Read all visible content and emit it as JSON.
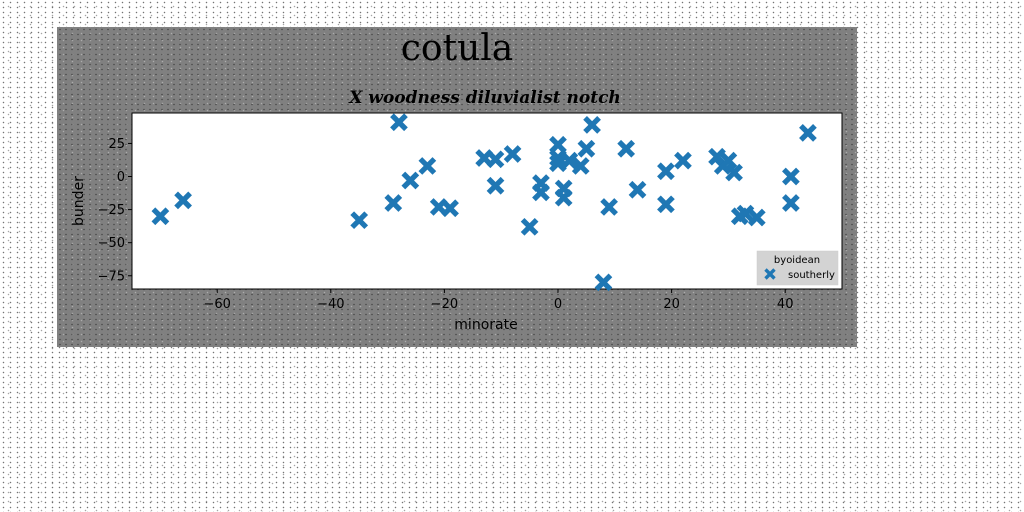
{
  "chart_data": {
    "type": "scatter",
    "title": "cotula",
    "subtitle": "X woodness diluvialist notch",
    "xlabel": "minorate",
    "ylabel": "bunder",
    "xlim": [
      -75,
      50
    ],
    "ylim": [
      -85,
      48
    ],
    "xticks": [
      -60,
      -40,
      -20,
      0,
      20,
      40
    ],
    "yticks": [
      25,
      0,
      -25,
      -50,
      -75
    ],
    "grid": false,
    "legend": {
      "title": "byoidean",
      "placement": "lower-right"
    },
    "series": [
      {
        "name": "southerly",
        "marker": "X",
        "color": "#1f77b4",
        "points": [
          [
            -70,
            -30
          ],
          [
            -66,
            -18
          ],
          [
            -35,
            -33
          ],
          [
            -29,
            -20
          ],
          [
            -28,
            41
          ],
          [
            -26,
            -3
          ],
          [
            -23,
            8
          ],
          [
            -21,
            -23
          ],
          [
            -19,
            -24
          ],
          [
            -13,
            14
          ],
          [
            -11,
            13
          ],
          [
            -11,
            -7
          ],
          [
            -8,
            17
          ],
          [
            -5,
            -38
          ],
          [
            -3,
            -5
          ],
          [
            -3,
            -12
          ],
          [
            0,
            24
          ],
          [
            0,
            14
          ],
          [
            0,
            10
          ],
          [
            1,
            -9
          ],
          [
            1,
            -16
          ],
          [
            2,
            12
          ],
          [
            4,
            8
          ],
          [
            5,
            21
          ],
          [
            6,
            39
          ],
          [
            8,
            -80
          ],
          [
            9,
            -23
          ],
          [
            12,
            21
          ],
          [
            14,
            -10
          ],
          [
            19,
            -21
          ],
          [
            19,
            4
          ],
          [
            22,
            12
          ],
          [
            28,
            15
          ],
          [
            29,
            8
          ],
          [
            30,
            12
          ],
          [
            31,
            3
          ],
          [
            32,
            -30
          ],
          [
            33,
            -28
          ],
          [
            35,
            -31
          ],
          [
            41,
            -20
          ],
          [
            41,
            0
          ],
          [
            44,
            33
          ]
        ]
      }
    ]
  },
  "colors": {
    "figure_bg": "#808080",
    "plot_bg": "#ffffff",
    "marker": "#1f77b4",
    "legend_bg": "#d3d3d3"
  }
}
